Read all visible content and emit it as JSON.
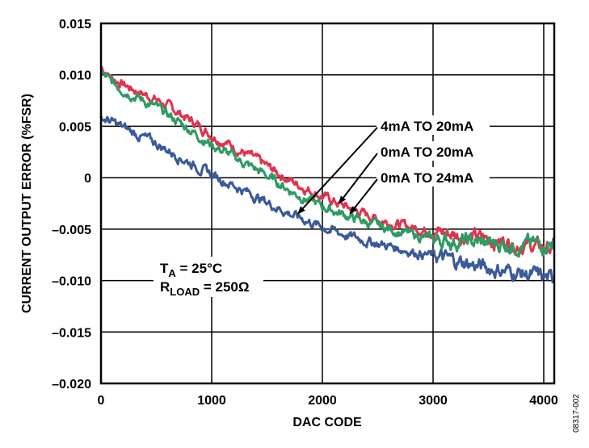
{
  "chart_data": {
    "type": "line",
    "title": "",
    "xlabel": "DAC CODE",
    "ylabel": "CURRENT OUTPUT ERROR (%FSR)",
    "xlim": [
      0,
      4095
    ],
    "ylim": [
      -0.02,
      0.015
    ],
    "grid": true,
    "x_ticks": [
      0,
      1000,
      2000,
      3000,
      4000
    ],
    "x_tick_labels": [
      "0",
      "1000",
      "2000",
      "3000",
      "4000"
    ],
    "y_ticks": [
      0.015,
      0.01,
      0.005,
      0,
      -0.005,
      -0.01,
      -0.015,
      -0.02
    ],
    "y_tick_labels": [
      "0.015",
      "0.010",
      "0.005",
      "0",
      "–0.005",
      "–0.010",
      "–0.015",
      "–0.020"
    ],
    "series": [
      {
        "name": "red-trace",
        "color": "#e0334f",
        "x": [
          0,
          100,
          250,
          500,
          750,
          1000,
          1250,
          1500,
          1750,
          2000,
          2250,
          2500,
          2750,
          3000,
          3250,
          3500,
          3750,
          4000,
          4095
        ],
        "values": [
          0.0108,
          0.0097,
          0.0088,
          0.0076,
          0.006,
          0.0042,
          0.0027,
          0.0011,
          -0.0005,
          -0.0018,
          -0.003,
          -0.004,
          -0.0047,
          -0.0052,
          -0.0056,
          -0.006,
          -0.0064,
          -0.0068,
          -0.007
        ]
      },
      {
        "name": "green-trace",
        "color": "#2e9b63",
        "x": [
          0,
          100,
          250,
          500,
          750,
          1000,
          1250,
          1500,
          1750,
          2000,
          2250,
          2500,
          2750,
          3000,
          3250,
          3500,
          3750,
          4000,
          4095
        ],
        "values": [
          0.0102,
          0.0092,
          0.0083,
          0.0068,
          0.0051,
          0.0032,
          0.0017,
          0.0002,
          -0.0015,
          -0.0028,
          -0.0038,
          -0.0047,
          -0.0054,
          -0.006,
          -0.0062,
          -0.0064,
          -0.0065,
          -0.0065,
          -0.0062
        ]
      },
      {
        "name": "blue-trace",
        "color": "#3a5a98",
        "x": [
          0,
          100,
          250,
          500,
          750,
          1000,
          1250,
          1500,
          1750,
          2000,
          2250,
          2500,
          2750,
          3000,
          3250,
          3500,
          3750,
          4000,
          4095
        ],
        "values": [
          0.0059,
          0.0054,
          0.0046,
          0.0033,
          0.0018,
          0.0003,
          -0.001,
          -0.0024,
          -0.0037,
          -0.0048,
          -0.0057,
          -0.0064,
          -0.007,
          -0.0076,
          -0.0082,
          -0.0088,
          -0.0092,
          -0.0097,
          -0.01
        ]
      }
    ],
    "annotations": [
      {
        "text": "4mA TO 20mA",
        "arrow_to": {
          "x": 1780,
          "y": -0.0035
        }
      },
      {
        "text": "0mA TO 20mA",
        "arrow_to": {
          "x": 2150,
          "y": -0.0025
        }
      },
      {
        "text": "0mA TO 24mA",
        "arrow_to": {
          "x": 2250,
          "y": -0.0035
        }
      }
    ],
    "conditions": {
      "ta_label": "T",
      "ta_sub": "A",
      "ta_value": " = 25°C",
      "rload_label": "R",
      "rload_sub": "LOAD",
      "rload_value": " = 250Ω"
    },
    "figure_id": "08317-002"
  }
}
